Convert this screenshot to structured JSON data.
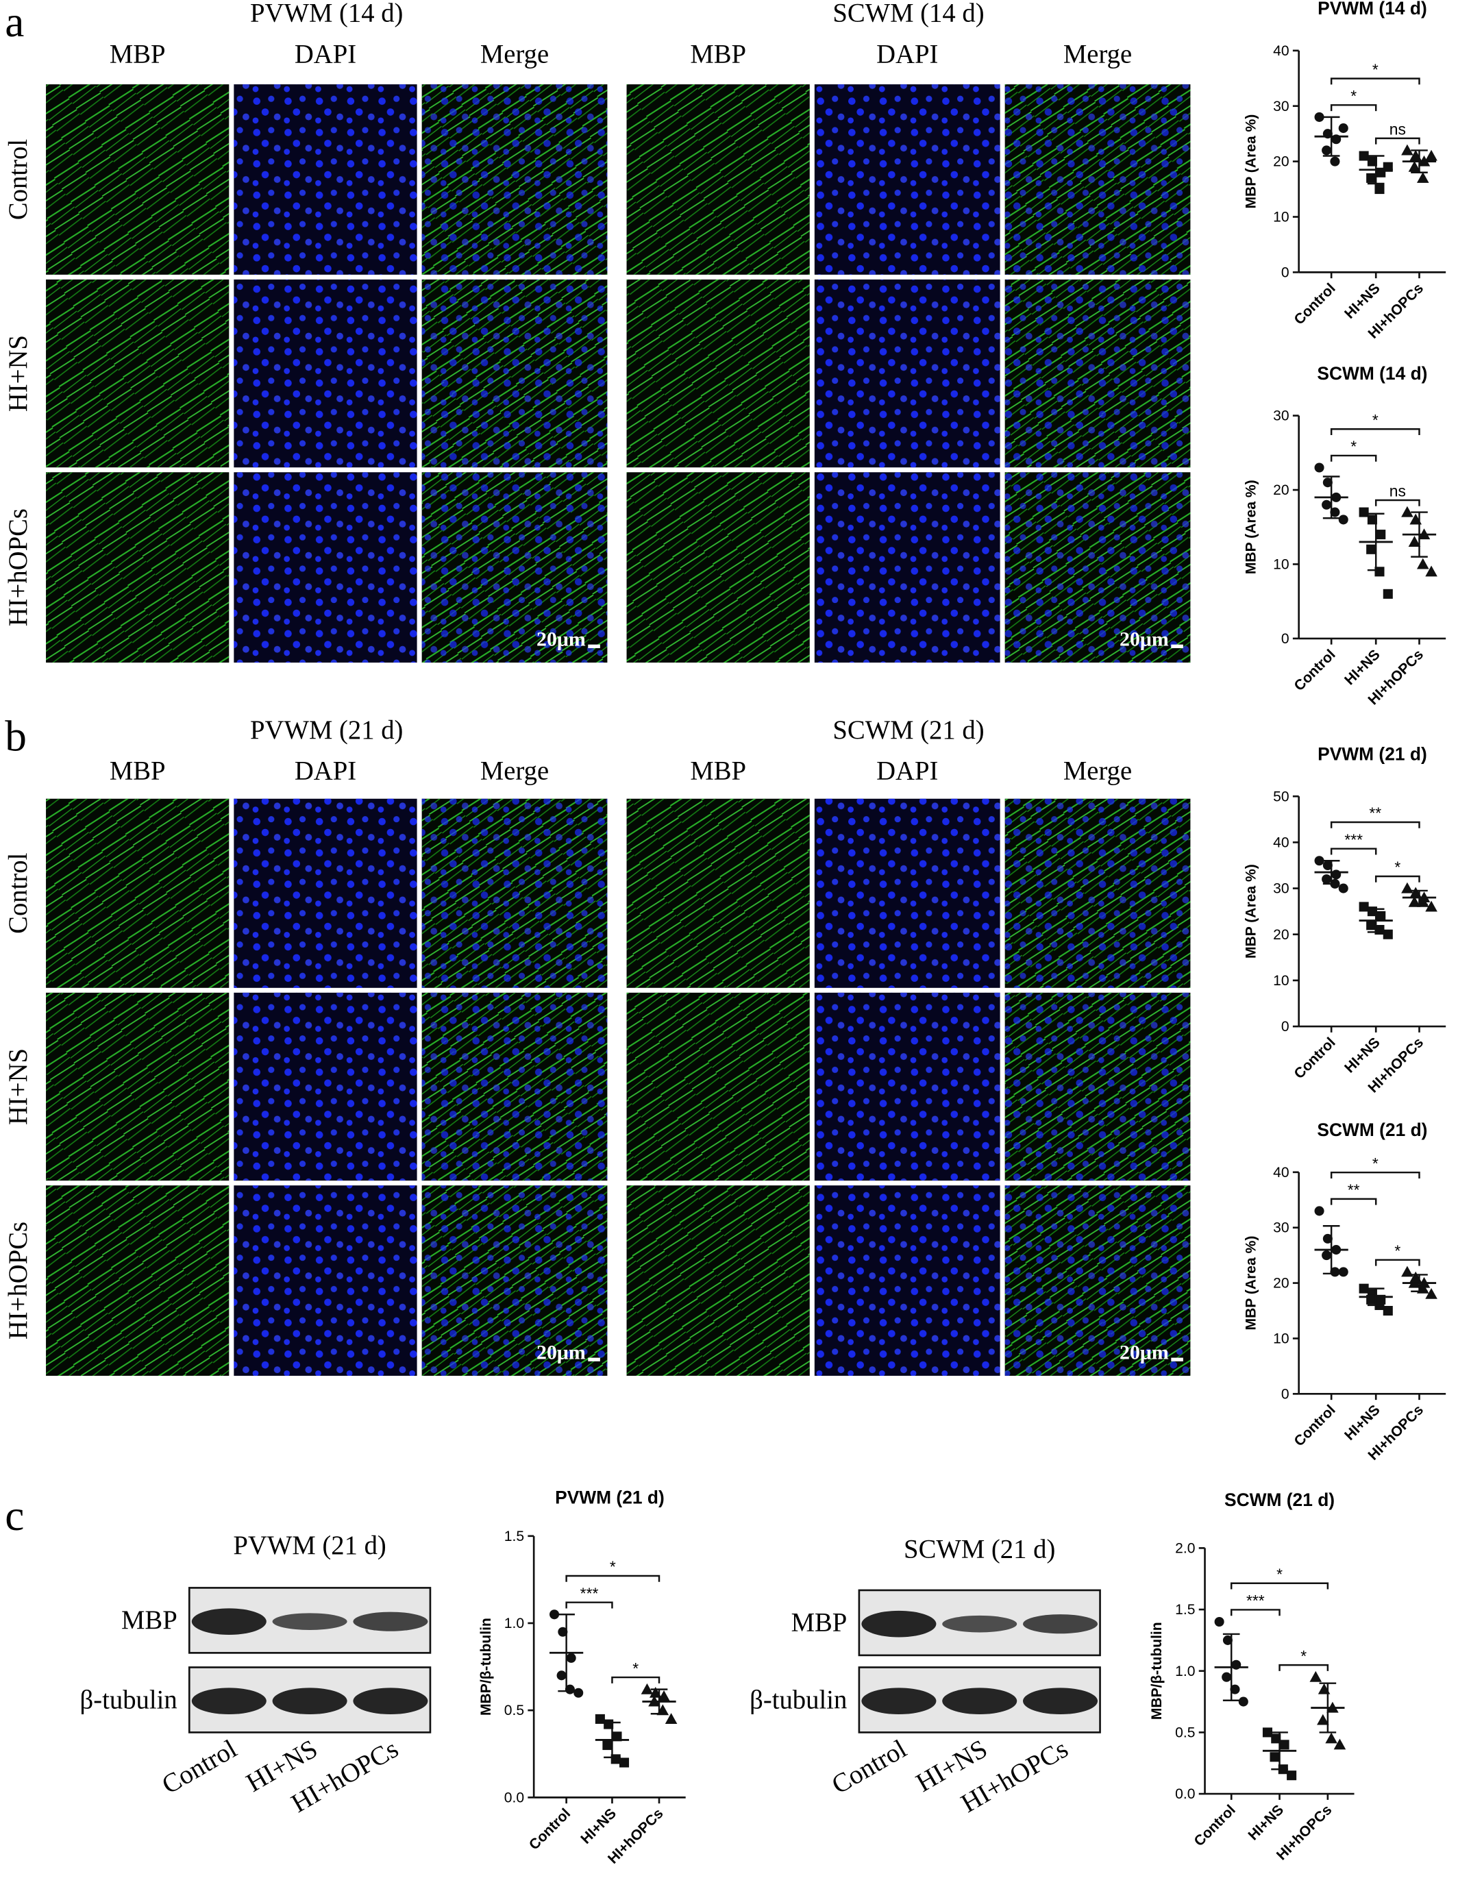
{
  "panels": [
    {
      "label": "a",
      "rows": [
        "Control",
        "HI+NS",
        "HI+hOPCs"
      ],
      "groups": [
        {
          "title": "PVWM (14 d)",
          "channels": [
            "MBP",
            "DAPI",
            "Merge"
          ],
          "scale_bar": "20μm"
        },
        {
          "title": "SCWM (14 d)",
          "channels": [
            "MBP",
            "DAPI",
            "Merge"
          ],
          "scale_bar": "20μm"
        }
      ]
    },
    {
      "label": "b",
      "rows": [
        "Control",
        "HI+NS",
        "HI+hOPCs"
      ],
      "groups": [
        {
          "title": "PVWM (21 d)",
          "channels": [
            "MBP",
            "DAPI",
            "Merge"
          ],
          "scale_bar": "20μm"
        },
        {
          "title": "SCWM (21 d)",
          "channels": [
            "MBP",
            "DAPI",
            "Merge"
          ],
          "scale_bar": "20μm"
        }
      ]
    },
    {
      "label": "c",
      "blots": [
        {
          "title": "PVWM (21 d)",
          "rows": [
            "MBP",
            "β-tubulin"
          ],
          "lanes": [
            "Control",
            "HI+NS",
            "HI+hOPCs"
          ]
        },
        {
          "title": "SCWM (21 d)",
          "rows": [
            "MBP",
            "β-tubulin"
          ],
          "lanes": [
            "Control",
            "HI+NS",
            "HI+hOPCs"
          ]
        }
      ]
    }
  ],
  "charts": [
    {
      "type": "scatter",
      "title": "PVWM (14 d)",
      "ylabel": "MBP (Area %)",
      "categories": [
        "Control",
        "HI+NS",
        "HI+hOPCs"
      ],
      "ylim": [
        0,
        40
      ],
      "yticks": [
        0,
        10,
        20,
        30,
        40
      ],
      "points": [
        [
          28,
          25,
          24,
          22,
          20,
          26
        ],
        [
          21,
          20,
          18,
          17,
          15,
          19
        ],
        [
          22,
          21,
          20,
          19,
          17,
          21
        ]
      ],
      "mean": [
        24.5,
        18.5,
        20
      ],
      "sd": [
        3.5,
        2.5,
        2
      ],
      "brackets": [
        {
          "from": 0,
          "to": 1,
          "label": "*"
        },
        {
          "from": 0,
          "to": 2,
          "label": "*"
        },
        {
          "from": 1,
          "to": 2,
          "label": "ns"
        }
      ]
    },
    {
      "type": "scatter",
      "title": "SCWM (14 d)",
      "ylabel": "MBP (Area %)",
      "categories": [
        "Control",
        "HI+NS",
        "HI+hOPCs"
      ],
      "ylim": [
        0,
        30
      ],
      "yticks": [
        0,
        10,
        20,
        30
      ],
      "points": [
        [
          23,
          21,
          19,
          18,
          17,
          16
        ],
        [
          17,
          16,
          14,
          12,
          9,
          6
        ],
        [
          17,
          16,
          14,
          13,
          10,
          9
        ]
      ],
      "mean": [
        19,
        13,
        14
      ],
      "sd": [
        2.8,
        3.8,
        3
      ],
      "brackets": [
        {
          "from": 0,
          "to": 1,
          "label": "*"
        },
        {
          "from": 0,
          "to": 2,
          "label": "*"
        },
        {
          "from": 1,
          "to": 2,
          "label": "ns"
        }
      ]
    },
    {
      "type": "scatter",
      "title": "PVWM (21 d)",
      "ylabel": "MBP (Area %)",
      "categories": [
        "Control",
        "HI+NS",
        "HI+hOPCs"
      ],
      "ylim": [
        0,
        50
      ],
      "yticks": [
        0,
        10,
        20,
        30,
        40,
        50
      ],
      "points": [
        [
          36,
          35,
          33,
          32,
          31,
          30
        ],
        [
          26,
          25,
          24,
          22,
          21,
          20
        ],
        [
          30,
          29,
          28,
          27,
          27,
          26
        ]
      ],
      "mean": [
        33.5,
        23,
        28
      ],
      "sd": [
        2.5,
        2.5,
        1.5
      ],
      "brackets": [
        {
          "from": 0,
          "to": 1,
          "label": "***"
        },
        {
          "from": 0,
          "to": 2,
          "label": "**"
        },
        {
          "from": 1,
          "to": 2,
          "label": "*"
        }
      ]
    },
    {
      "type": "scatter",
      "title": "SCWM (21 d)",
      "ylabel": "MBP (Area %)",
      "categories": [
        "Control",
        "HI+NS",
        "HI+hOPCs"
      ],
      "ylim": [
        0,
        40
      ],
      "yticks": [
        0,
        10,
        20,
        30,
        40
      ],
      "points": [
        [
          33,
          28,
          26,
          25,
          22,
          22
        ],
        [
          19,
          18,
          17,
          17,
          16,
          15
        ],
        [
          22,
          21,
          20,
          20,
          19,
          18
        ]
      ],
      "mean": [
        26,
        17.5,
        20
      ],
      "sd": [
        4.3,
        1.5,
        1.5
      ],
      "brackets": [
        {
          "from": 0,
          "to": 1,
          "label": "**"
        },
        {
          "from": 0,
          "to": 2,
          "label": "*"
        },
        {
          "from": 1,
          "to": 2,
          "label": "*"
        }
      ]
    },
    {
      "type": "scatter",
      "title": "PVWM (21 d)",
      "ylabel": "MBP/β-tubulin",
      "categories": [
        "Control",
        "HI+NS",
        "HI+hOPCs"
      ],
      "ylim": [
        0,
        1.5
      ],
      "yticks": [
        {
          "value": 0,
          "label": "0.0"
        },
        0.5,
        {
          "value": 1,
          "label": "1.0"
        },
        1.5
      ],
      "points": [
        [
          1.05,
          0.95,
          0.8,
          0.7,
          0.62,
          0.6
        ],
        [
          0.45,
          0.42,
          0.35,
          0.3,
          0.22,
          0.2
        ],
        [
          0.62,
          0.6,
          0.58,
          0.55,
          0.5,
          0.45
        ]
      ],
      "mean": [
        0.83,
        0.33,
        0.55
      ],
      "sd": [
        0.22,
        0.1,
        0.07
      ],
      "brackets": [
        {
          "from": 0,
          "to": 1,
          "label": "***"
        },
        {
          "from": 0,
          "to": 2,
          "label": "*"
        },
        {
          "from": 1,
          "to": 2,
          "label": "*"
        }
      ]
    },
    {
      "type": "scatter",
      "title": "SCWM (21 d)",
      "ylabel": "MBP/β-tubulin",
      "categories": [
        "Control",
        "HI+NS",
        "HI+hOPCs"
      ],
      "ylim": [
        0,
        2
      ],
      "yticks": [
        {
          "value": 0,
          "label": "0.0"
        },
        0.5,
        {
          "value": 1,
          "label": "1.0"
        },
        1.5,
        {
          "value": 2,
          "label": "2.0"
        }
      ],
      "points": [
        [
          1.4,
          1.25,
          1.05,
          0.95,
          0.85,
          0.75
        ],
        [
          0.5,
          0.45,
          0.4,
          0.3,
          0.2,
          0.15
        ],
        [
          0.95,
          0.85,
          0.7,
          0.6,
          0.45,
          0.4
        ]
      ],
      "mean": [
        1.03,
        0.35,
        0.7
      ],
      "sd": [
        0.27,
        0.15,
        0.2
      ],
      "brackets": [
        {
          "from": 0,
          "to": 1,
          "label": "***"
        },
        {
          "from": 0,
          "to": 2,
          "label": "*"
        },
        {
          "from": 1,
          "to": 2,
          "label": "*"
        }
      ]
    }
  ]
}
